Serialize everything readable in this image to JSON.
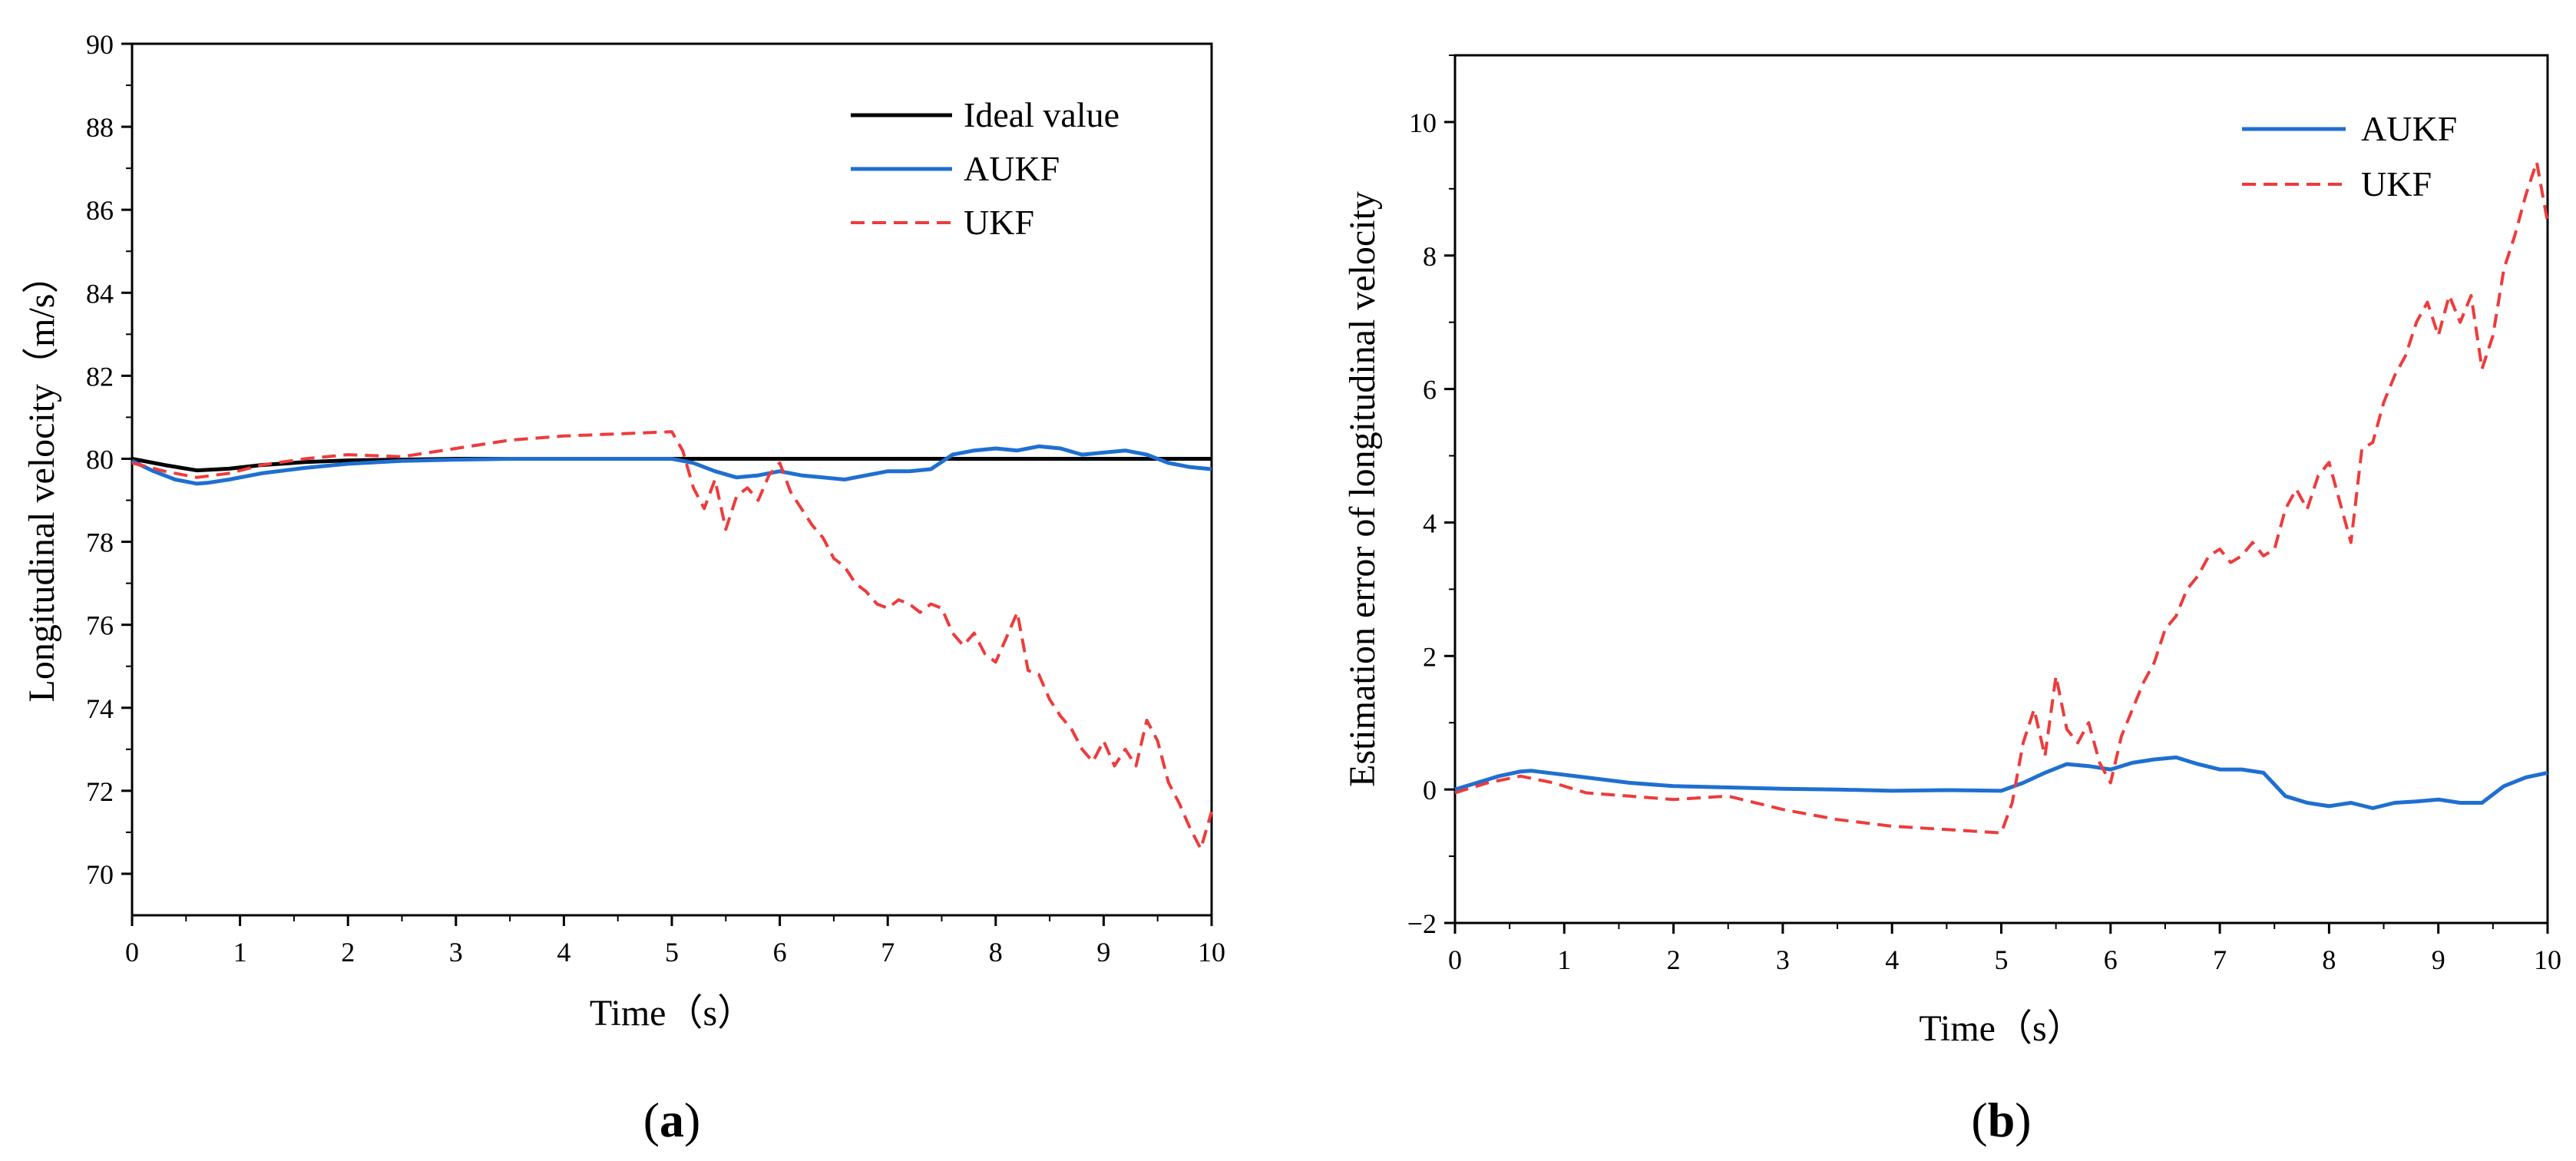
{
  "colors": {
    "ideal": "#000000",
    "aukf": "#1f6fd1",
    "ukf": "#ee3b3b",
    "axis": "#000000"
  },
  "chart_data": [
    {
      "type": "line",
      "panel_label": "a",
      "xlabel": "Time（s）",
      "ylabel": "Longitudinal velocity（m/s）",
      "xlim": [
        0,
        10
      ],
      "ylim": [
        69,
        90
      ],
      "xticks": [
        0,
        1,
        2,
        3,
        4,
        5,
        6,
        7,
        8,
        9,
        10
      ],
      "yticks": [
        70,
        72,
        74,
        76,
        78,
        80,
        82,
        84,
        86,
        88,
        90
      ],
      "legend_position": "top-right",
      "series": [
        {
          "name": "Ideal value",
          "style": "solid",
          "color_key": "ideal",
          "x": [
            0,
            0.3,
            0.6,
            0.9,
            1.2,
            1.6,
            2.0,
            2.5,
            3,
            4,
            5,
            6,
            7,
            8,
            9,
            10
          ],
          "y": [
            80.0,
            79.85,
            79.72,
            79.76,
            79.85,
            79.92,
            79.96,
            79.98,
            80.0,
            80.0,
            80.0,
            80.0,
            80.0,
            80.0,
            80.0,
            80.0
          ]
        },
        {
          "name": "AUKF",
          "style": "solid",
          "color_key": "aukf",
          "x": [
            0,
            0.2,
            0.4,
            0.6,
            0.7,
            0.9,
            1.2,
            1.6,
            2.0,
            2.5,
            3.0,
            3.5,
            4.0,
            4.5,
            5.0,
            5.2,
            5.4,
            5.6,
            5.8,
            6.0,
            6.2,
            6.4,
            6.6,
            6.8,
            7.0,
            7.2,
            7.4,
            7.6,
            7.8,
            8.0,
            8.2,
            8.4,
            8.6,
            8.8,
            9.0,
            9.2,
            9.4,
            9.6,
            9.8,
            10.0
          ],
          "y": [
            79.95,
            79.7,
            79.5,
            79.4,
            79.42,
            79.5,
            79.65,
            79.78,
            79.88,
            79.95,
            79.98,
            80.0,
            80.0,
            80.0,
            80.0,
            79.9,
            79.7,
            79.55,
            79.6,
            79.7,
            79.6,
            79.55,
            79.5,
            79.6,
            79.7,
            79.7,
            79.75,
            80.1,
            80.2,
            80.25,
            80.2,
            80.3,
            80.25,
            80.1,
            80.15,
            80.2,
            80.1,
            79.9,
            79.8,
            79.75
          ]
        },
        {
          "name": "UKF",
          "style": "dashed",
          "color_key": "ukf",
          "x": [
            0,
            0.3,
            0.6,
            0.9,
            1.2,
            1.6,
            2.0,
            2.5,
            3.0,
            3.5,
            4.0,
            4.5,
            5.0,
            5.1,
            5.2,
            5.3,
            5.4,
            5.5,
            5.6,
            5.7,
            5.8,
            5.9,
            6.0,
            6.1,
            6.2,
            6.3,
            6.4,
            6.5,
            6.6,
            6.7,
            6.8,
            6.9,
            7.0,
            7.1,
            7.2,
            7.3,
            7.4,
            7.5,
            7.6,
            7.7,
            7.8,
            7.9,
            8.0,
            8.1,
            8.2,
            8.3,
            8.4,
            8.5,
            8.6,
            8.7,
            8.8,
            8.9,
            9.0,
            9.1,
            9.2,
            9.3,
            9.4,
            9.5,
            9.6,
            9.7,
            9.8,
            9.9,
            10.0
          ],
          "y": [
            79.9,
            79.7,
            79.55,
            79.65,
            79.85,
            80.0,
            80.1,
            80.05,
            80.25,
            80.45,
            80.55,
            80.6,
            80.65,
            80.2,
            79.3,
            78.8,
            79.5,
            78.3,
            79.1,
            79.3,
            79.0,
            79.6,
            79.9,
            79.2,
            78.8,
            78.4,
            78.1,
            77.6,
            77.4,
            77.0,
            76.8,
            76.5,
            76.4,
            76.6,
            76.5,
            76.3,
            76.5,
            76.4,
            75.8,
            75.5,
            75.8,
            75.3,
            75.1,
            75.7,
            76.3,
            74.9,
            74.8,
            74.2,
            73.8,
            73.5,
            73.0,
            72.7,
            73.2,
            72.6,
            73.0,
            72.6,
            73.7,
            73.2,
            72.2,
            71.7,
            71.1,
            70.6,
            71.5
          ]
        }
      ]
    },
    {
      "type": "line",
      "panel_label": "b",
      "xlabel": "Time（s）",
      "ylabel": "Estimation error of  longitudinal velocity",
      "xlim": [
        0,
        10
      ],
      "ylim": [
        -2,
        11
      ],
      "xticks": [
        0,
        1,
        2,
        3,
        4,
        5,
        6,
        7,
        8,
        9,
        10
      ],
      "yticks": [
        -2,
        0,
        2,
        4,
        6,
        8,
        10
      ],
      "legend_position": "top-right",
      "series": [
        {
          "name": "AUKF",
          "style": "solid",
          "color_key": "aukf",
          "x": [
            0,
            0.2,
            0.4,
            0.6,
            0.7,
            0.9,
            1.2,
            1.6,
            2.0,
            2.5,
            3.0,
            3.5,
            4.0,
            4.5,
            5.0,
            5.2,
            5.4,
            5.6,
            5.8,
            6.0,
            6.2,
            6.4,
            6.6,
            6.8,
            7.0,
            7.2,
            7.4,
            7.6,
            7.8,
            8.0,
            8.2,
            8.4,
            8.6,
            8.8,
            9.0,
            9.2,
            9.4,
            9.6,
            9.8,
            10.0
          ],
          "y": [
            0.0,
            0.1,
            0.2,
            0.27,
            0.28,
            0.24,
            0.18,
            0.1,
            0.05,
            0.03,
            0.01,
            0.0,
            -0.02,
            -0.01,
            -0.02,
            0.1,
            0.25,
            0.38,
            0.35,
            0.3,
            0.4,
            0.45,
            0.48,
            0.38,
            0.3,
            0.3,
            0.25,
            -0.1,
            -0.2,
            -0.25,
            -0.2,
            -0.28,
            -0.2,
            -0.18,
            -0.15,
            -0.2,
            -0.2,
            0.05,
            0.18,
            0.25
          ]
        },
        {
          "name": "UKF",
          "style": "dashed",
          "color_key": "ukf",
          "x": [
            0,
            0.3,
            0.6,
            0.9,
            1.2,
            1.6,
            2.0,
            2.5,
            3.0,
            3.5,
            4.0,
            4.5,
            5.0,
            5.1,
            5.2,
            5.3,
            5.4,
            5.5,
            5.6,
            5.7,
            5.8,
            5.9,
            6.0,
            6.1,
            6.2,
            6.3,
            6.4,
            6.5,
            6.6,
            6.7,
            6.8,
            6.9,
            7.0,
            7.1,
            7.2,
            7.3,
            7.4,
            7.5,
            7.6,
            7.7,
            7.8,
            7.9,
            8.0,
            8.1,
            8.2,
            8.3,
            8.4,
            8.5,
            8.6,
            8.7,
            8.8,
            8.9,
            9.0,
            9.1,
            9.2,
            9.3,
            9.4,
            9.5,
            9.6,
            9.7,
            9.8,
            9.9,
            10.0
          ],
          "y": [
            -0.05,
            0.1,
            0.2,
            0.1,
            -0.05,
            -0.1,
            -0.15,
            -0.1,
            -0.3,
            -0.45,
            -0.55,
            -0.6,
            -0.65,
            -0.2,
            0.7,
            1.2,
            0.5,
            1.7,
            0.9,
            0.7,
            1.0,
            0.4,
            0.1,
            0.8,
            1.2,
            1.6,
            1.9,
            2.4,
            2.6,
            3.0,
            3.2,
            3.5,
            3.6,
            3.4,
            3.5,
            3.7,
            3.5,
            3.6,
            4.2,
            4.5,
            4.2,
            4.7,
            4.9,
            4.3,
            3.7,
            5.1,
            5.2,
            5.8,
            6.2,
            6.5,
            7.0,
            7.3,
            6.8,
            7.4,
            7.0,
            7.4,
            6.3,
            6.8,
            7.8,
            8.3,
            8.9,
            9.4,
            8.5
          ]
        }
      ]
    }
  ]
}
